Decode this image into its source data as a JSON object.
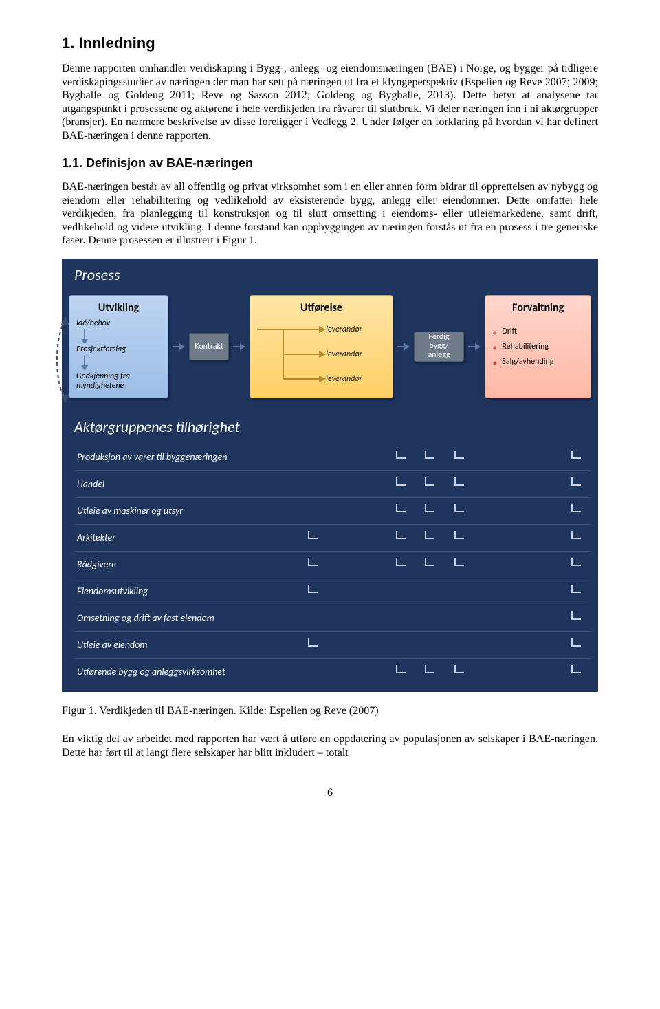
{
  "h1": {
    "text": "1. Innledning",
    "fontsize": 22
  },
  "p1": "Denne rapporten omhandler verdiskaping i Bygg-, anlegg- og eiendomsnæringen (BAE) i Norge, og bygger på tidligere verdiskapingsstudier av næringen der man har sett på næringen ut fra et klyngeperspektiv (Espelien og Reve 2007; 2009; Bygballe og Goldeng 2011; Reve og Sasson 2012; Goldeng og Bygballe, 2013). Dette betyr at analysene tar utgangspunkt i prosessene og aktørene i hele verdikjeden fra råvarer til sluttbruk. Vi deler næringen inn i ni aktørgrupper (bransjer). En nærmere beskrivelse av disse foreligger i Vedlegg 2. Under følger en forklaring på hvordan vi har definert BAE-næringen i denne rapporten.",
  "h2": {
    "text": "1.1. Definisjon av BAE-næringen",
    "fontsize": 18
  },
  "p2": "BAE-næringen består av all offentlig og privat virksomhet som i en eller annen form bidrar til opprettelsen av nybygg og eiendom eller rehabilitering og vedlikehold av eksisterende bygg, anlegg eller eiendommer. Dette omfatter hele verdikjeden, fra planlegging til konstruksjon og til slutt omsetting i eiendoms- eller utleiemarkedene, samt drift, vedlikehold og videre utvikling. I denne forstand kan oppbyggingen av næringen forstås ut fra en prosess i tre generiske faser. Denne prosessen er illustrert i Figur 1.",
  "caption": "Figur 1. Verdikjeden til BAE-næringen. Kilde: Espelien og Reve (2007)",
  "p3": "En viktig del av arbeidet med rapporten har vært å utføre en oppdatering av populasjonen av selskaper i BAE-næringen. Dette har ført til at langt flere selskaper har blitt inkludert – totalt",
  "page_num": "6",
  "body_fontsize": 16,
  "figure": {
    "background": "#1f355e",
    "section1_title": "Prosess",
    "section2_title": "Aktørgruppenes tilhørighet",
    "colors": {
      "dev_fill_top": "#bdd4f0",
      "dev_fill_bot": "#9cbde6",
      "dev_border": "#6a8fc0",
      "exec_fill_top": "#ffe6a6",
      "exec_fill_bot": "#ffcf66",
      "exec_border": "#caa24a",
      "mgmt_fill_top": "#ffd6cc",
      "mgmt_fill_bot": "#ffb8a6",
      "mgmt_border": "#d18a7a",
      "inter_fill": "#6f7b88",
      "inter_border": "#4e5a68",
      "arrow_blue": "#5b7aa8",
      "arrow_gold": "#b28c2e",
      "dashed": "#3a4a68",
      "tick": "#c8d4e6",
      "matrix_row_border": "#3a5078",
      "mgmt_bullet": "#c0504d"
    },
    "title_fontsize": 22,
    "label_fontsize": 14,
    "dev": {
      "title": "Utvikling",
      "items": [
        "Idé/behov",
        "Prosjektforslag",
        "Godkjenning fra myndighetene"
      ]
    },
    "kontrakt": "Kontrakt",
    "exec": {
      "title": "Utførelse",
      "items": [
        "leverandør",
        "leverandør",
        "leverandør"
      ]
    },
    "ferdig": "Ferdig bygg/ anlegg",
    "mgmt": {
      "title": "Forvaltning",
      "items": [
        "Drift",
        "Rehabilitering",
        "Salg/avhending"
      ]
    },
    "matrix": {
      "label_col_width": 200,
      "tick_cols": 10,
      "rows": [
        {
          "label": "Produksjon av varer til byggenæringen",
          "ticks": [
            0,
            0,
            0,
            1,
            1,
            1,
            0,
            0,
            0,
            1
          ]
        },
        {
          "label": "Handel",
          "ticks": [
            0,
            0,
            0,
            1,
            1,
            1,
            0,
            0,
            0,
            1
          ]
        },
        {
          "label": "Utleie av maskiner og utsyr",
          "ticks": [
            0,
            0,
            0,
            1,
            1,
            1,
            0,
            0,
            0,
            1
          ]
        },
        {
          "label": "Arkitekter",
          "ticks": [
            1,
            0,
            0,
            1,
            1,
            1,
            0,
            0,
            0,
            1
          ]
        },
        {
          "label": "Rådgivere",
          "ticks": [
            1,
            0,
            0,
            1,
            1,
            1,
            0,
            0,
            0,
            1
          ]
        },
        {
          "label": "Eiendomsutvikling",
          "ticks": [
            1,
            0,
            0,
            0,
            0,
            0,
            0,
            0,
            0,
            1
          ]
        },
        {
          "label": "Omsetning og drift av fast eiendom",
          "ticks": [
            0,
            0,
            0,
            0,
            0,
            0,
            0,
            0,
            0,
            1
          ]
        },
        {
          "label": "Utleie av eiendom",
          "ticks": [
            1,
            0,
            0,
            0,
            0,
            0,
            0,
            0,
            0,
            1
          ]
        },
        {
          "label": "Utførende bygg og anleggsvirksomhet",
          "ticks": [
            0,
            0,
            0,
            1,
            1,
            1,
            0,
            0,
            0,
            1
          ]
        }
      ]
    }
  }
}
